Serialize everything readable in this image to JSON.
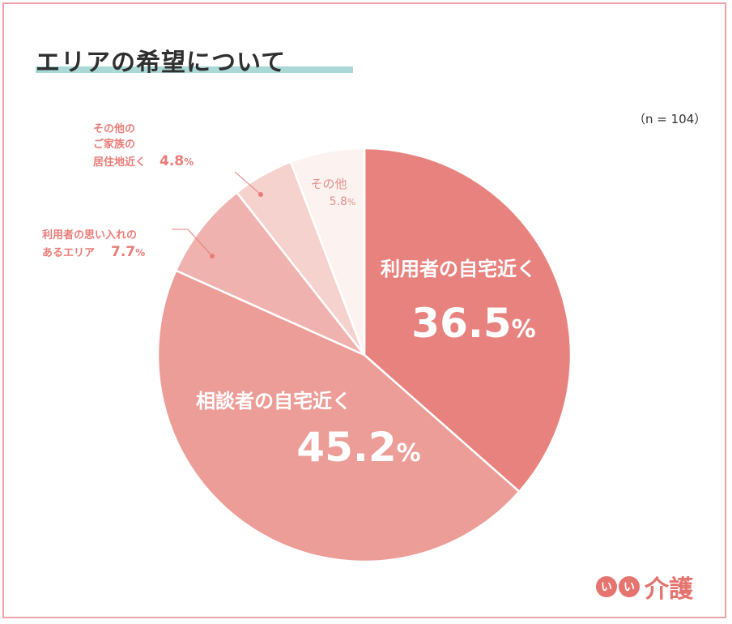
{
  "title": "エリアの希望について",
  "sample_size": "（n = 104）",
  "logo": {
    "badge1": "い",
    "badge2": "い",
    "text": "介護"
  },
  "chart_data": {
    "type": "pie",
    "title": "エリアの希望について",
    "start_angle_deg": 0,
    "direction": "clockwise",
    "slices": [
      {
        "label": "利用者の自宅近く",
        "value": 36.5,
        "value_label": "36.5",
        "unit": "%",
        "color": "#e8827e"
      },
      {
        "label": "相談者の自宅近く",
        "value": 45.2,
        "value_label": "45.2",
        "unit": "%",
        "color": "#ec9d97"
      },
      {
        "label_lines": [
          "利用者の思い入れの",
          "あるエリア"
        ],
        "value": 7.7,
        "value_label": "7.7",
        "unit": "%",
        "color": "#f0b2ae"
      },
      {
        "label_lines": [
          "その他の",
          "ご家族の",
          "居住地近く"
        ],
        "value": 4.8,
        "value_label": "4.8",
        "unit": "%",
        "color": "#f6d2cf"
      },
      {
        "label": "その他",
        "value": 5.8,
        "value_label": "5.8",
        "unit": "%",
        "color": "#fcf2f0"
      }
    ],
    "label_color_inside": "#ffffff",
    "label_color_outside": "#e87c78",
    "label_color_small": "#e0938e"
  }
}
